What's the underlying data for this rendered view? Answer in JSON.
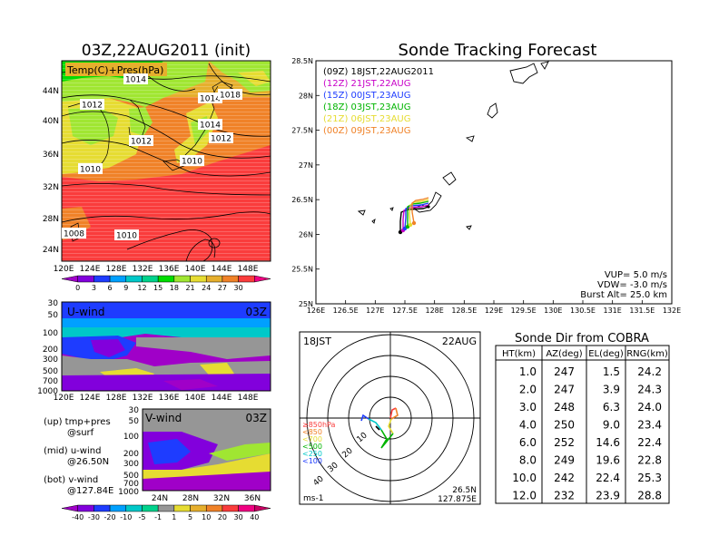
{
  "header": {
    "left_title": "03Z,22AUG2011 (init)",
    "right_title": "Sonde Tracking Forecast"
  },
  "temp_map": {
    "label": "Temp(C)+Pres(hPa)",
    "lat_ticks": [
      "44N",
      "40N",
      "36N",
      "32N",
      "28N",
      "24N"
    ],
    "lon_ticks": [
      "120E",
      "124E",
      "128E",
      "132E",
      "136E",
      "140E",
      "144E",
      "148E"
    ],
    "isobars": [
      "1014",
      "1012",
      "1014",
      "1018",
      "1012",
      "1014",
      "1012",
      "1010",
      "1010",
      "1008",
      "1010"
    ],
    "colorbar_ticks": [
      "0",
      "3",
      "6",
      "9",
      "12",
      "15",
      "18",
      "21",
      "24",
      "27",
      "30"
    ],
    "colorbar_colors": [
      "#a000c8",
      "#8200dc",
      "#1e3cff",
      "#00a0ff",
      "#00c8c8",
      "#00d28c",
      "#00dc00",
      "#a0e632",
      "#e6dc32",
      "#e6af2d",
      "#f08228",
      "#fa3c3c",
      "#f00082"
    ]
  },
  "u_wind": {
    "label": "U-wind",
    "time": "03Z",
    "y_ticks": [
      "30",
      "50",
      "100",
      "200",
      "300",
      "500",
      "700",
      "1000"
    ],
    "x_ticks": [
      "120E",
      "124E",
      "128E",
      "132E",
      "136E",
      "140E",
      "144E",
      "148E"
    ]
  },
  "v_wind": {
    "label": "V-wind",
    "time": "03Z",
    "y_ticks": [
      "30",
      "50",
      "100",
      "200",
      "300",
      "500",
      "700",
      "1000"
    ],
    "x_ticks": [
      "24N",
      "28N",
      "32N",
      "36N"
    ],
    "colorbar_ticks": [
      "-40",
      "-30",
      "-20",
      "-10",
      "-5",
      "-1",
      "1",
      "5",
      "10",
      "20",
      "30",
      "40"
    ],
    "colorbar_colors": [
      "#a000c8",
      "#8200dc",
      "#1e3cff",
      "#00a0ff",
      "#00c8c8",
      "#00d28c",
      "#969696",
      "#e6dc32",
      "#e6af2d",
      "#f08228",
      "#fa3c3c",
      "#f00082",
      "#c80064"
    ]
  },
  "notes": {
    "line1": "(up) tmp+pres",
    "line2": "@surf",
    "line3": "(mid) u-wind",
    "line4": "@26.50N",
    "line5": "(bot) v-wind",
    "line6": "@127.84E"
  },
  "tracking_map": {
    "y_ticks": [
      "28.5N",
      "28N",
      "27.5N",
      "27N",
      "26.5N",
      "26N",
      "25.5N",
      "25N"
    ],
    "x_ticks": [
      "126E",
      "126.5E",
      "127E",
      "127.5E",
      "128E",
      "128.5E",
      "129E",
      "129.5E",
      "130E",
      "130.5E",
      "131E",
      "131.5E",
      "132E"
    ],
    "legend": [
      {
        "label": "(09Z)  18JST,22AUG2011",
        "color": "#000000"
      },
      {
        "label": "(12Z)  21JST,22AUG",
        "color": "#c800c8"
      },
      {
        "label": "(15Z)  00JST,23AUG",
        "color": "#1e3cff"
      },
      {
        "label": "(18Z)  03JST,23AUG",
        "color": "#00b400"
      },
      {
        "label": "(21Z)  06JST,23AUG",
        "color": "#e6dc32"
      },
      {
        "label": "(00Z)  09JST,23AUG",
        "color": "#f08228"
      }
    ],
    "vup": "VUP=  5.0  m/s",
    "vdw": "VDW= -3.0  m/s",
    "burst": "Burst Alt=  25.0  km"
  },
  "polar": {
    "left_label": "18JST",
    "right_label": "22AUG",
    "unit": "ms-1",
    "lat": "26.5N",
    "lon": "127.875E",
    "ring_labels": [
      "10",
      "20",
      "30",
      "40"
    ],
    "levels": [
      {
        "label": "≥850hPa",
        "color": "#fa3c3c"
      },
      {
        "label": "<850",
        "color": "#f08228"
      },
      {
        "label": "<700",
        "color": "#e6dc32"
      },
      {
        "label": "<500",
        "color": "#00b400"
      },
      {
        "label": "<250",
        "color": "#00c8c8"
      },
      {
        "label": "<100",
        "color": "#1e3cff"
      }
    ]
  },
  "dir_table": {
    "title": "Sonde Dir from COBRA",
    "headers": [
      "HT(km)",
      "AZ(deg)",
      "EL(deg)",
      "RNG(km)"
    ],
    "rows": [
      [
        "1.0",
        "247",
        "1.5",
        "24.2"
      ],
      [
        "2.0",
        "247",
        "3.9",
        "24.3"
      ],
      [
        "3.0",
        "248",
        "6.3",
        "24.0"
      ],
      [
        "4.0",
        "250",
        "9.0",
        "23.4"
      ],
      [
        "6.0",
        "252",
        "14.6",
        "22.4"
      ],
      [
        "8.0",
        "249",
        "19.6",
        "22.8"
      ],
      [
        "10.0",
        "242",
        "22.4",
        "25.3"
      ],
      [
        "12.0",
        "232",
        "23.9",
        "28.8"
      ]
    ]
  }
}
